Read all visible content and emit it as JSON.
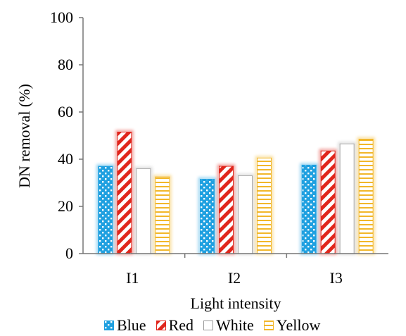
{
  "chart_data": {
    "type": "bar",
    "categories": [
      "I1",
      "I2",
      "I3"
    ],
    "series": [
      {
        "name": "Blue",
        "values": [
          37,
          31.5,
          37.5
        ]
      },
      {
        "name": "Red",
        "values": [
          51.5,
          37,
          43.5
        ]
      },
      {
        "name": "White",
        "values": [
          36,
          33,
          46.5
        ]
      },
      {
        "name": "Yellow",
        "values": [
          32.5,
          40.5,
          48.5
        ]
      }
    ],
    "xlabel": "Light intensity",
    "ylabel": "DN removal (%)",
    "ylim": [
      0,
      100
    ],
    "yticks": [
      0,
      20,
      40,
      60,
      80,
      100
    ],
    "grid": false,
    "legend_position": "bottom",
    "colors": {
      "Blue": "#1fa0e0",
      "Red": "#e0261c",
      "White": "#b5b5b5",
      "Yellow": "#f2b72a"
    },
    "patterns": {
      "Blue": "dots",
      "Red": "diagonal-stripes",
      "White": "solid-white",
      "Yellow": "horizontal-stripes"
    }
  }
}
